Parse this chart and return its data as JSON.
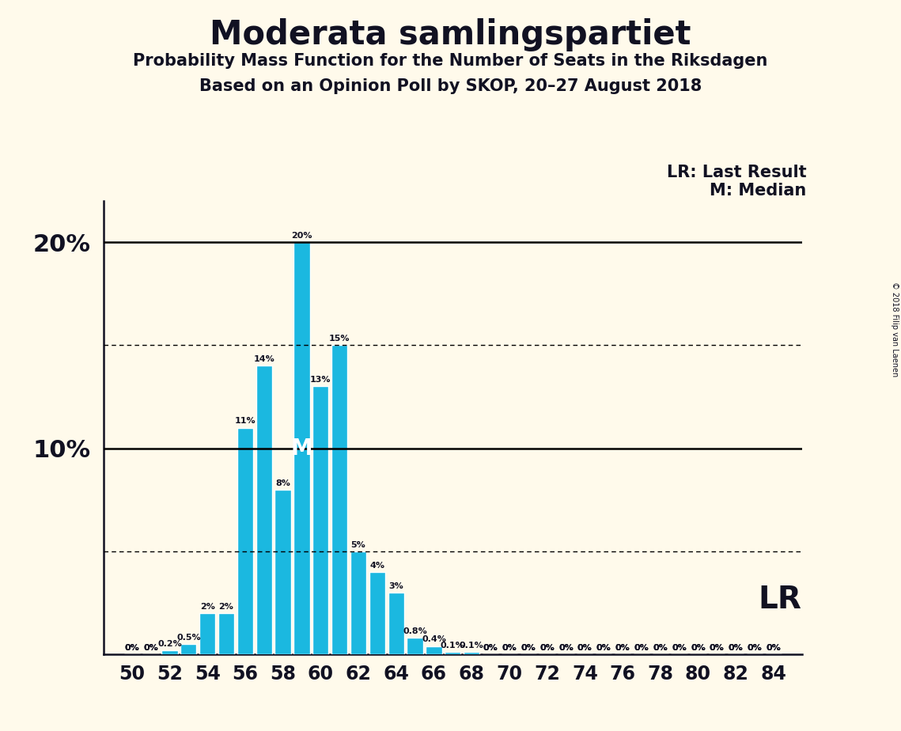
{
  "title": "Moderata samlingspartiet",
  "subtitle1": "Probability Mass Function for the Number of Seats in the Riksdagen",
  "subtitle2": "Based on an Opinion Poll by SKOP, 20–27 August 2018",
  "copyright": "© 2018 Filip van Laenen",
  "seats": [
    50,
    51,
    52,
    53,
    54,
    55,
    56,
    57,
    58,
    59,
    60,
    61,
    62,
    63,
    64,
    65,
    66,
    67,
    68,
    69,
    70,
    71,
    72,
    73,
    74,
    75,
    76,
    77,
    78,
    79,
    80,
    81,
    82,
    83,
    84
  ],
  "probabilities": [
    0.0,
    0.0,
    0.2,
    0.5,
    2.0,
    2.0,
    11.0,
    14.0,
    8.0,
    20.0,
    13.0,
    15.0,
    5.0,
    4.0,
    3.0,
    0.8,
    0.4,
    0.1,
    0.1,
    0.0,
    0.0,
    0.0,
    0.0,
    0.0,
    0.0,
    0.0,
    0.0,
    0.0,
    0.0,
    0.0,
    0.0,
    0.0,
    0.0,
    0.0,
    0.0
  ],
  "bar_color": "#1BB8E0",
  "background_color": "#FFFAEB",
  "text_color": "#111122",
  "median_seat": 59,
  "ylim_max": 22,
  "hlines_solid": [
    10,
    20
  ],
  "hlines_dotted": [
    5,
    15
  ],
  "lr_label": "LR: Last Result",
  "median_label": "M: Median",
  "lr_short": "LR",
  "title_fontsize": 30,
  "subtitle_fontsize": 15,
  "ytick_fontsize": 22,
  "xtick_fontsize": 17,
  "bar_label_fontsize": 8,
  "legend_fontsize": 15,
  "lr_fontsize": 28
}
